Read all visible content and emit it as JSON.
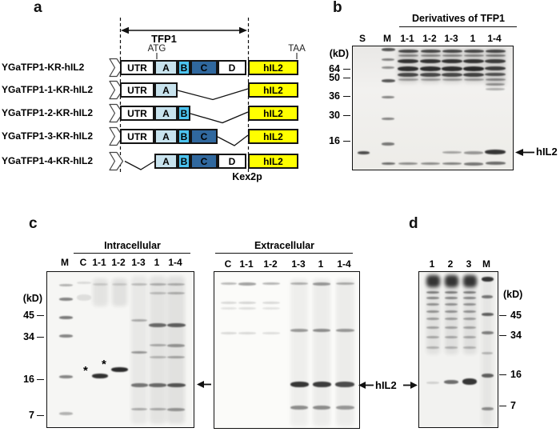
{
  "figure": {
    "panel_a": {
      "panel_label": "a",
      "tfp1_span_label": "TFP1",
      "start_codon": "ATG",
      "stop_codon": "TAA",
      "protease_label": "Kex2p",
      "segment_colors": {
        "UTR": "#ffffff",
        "A": "#c8e3ee",
        "B": "#4cc3ef",
        "C": "#30689e",
        "D": "#ffffff",
        "hIL2": "#ffff00"
      },
      "constructs": [
        {
          "label": "YGaTFP1-KR-hIL2",
          "segments": [
            "UTR",
            "A",
            "B",
            "C",
            "D",
            "hIL2"
          ]
        },
        {
          "label": "YGaTFP1-1-KR-hIL2",
          "segments": [
            "UTR",
            "A",
            "hIL2"
          ]
        },
        {
          "label": "YGaTFP1-2-KR-hIL2",
          "segments": [
            "UTR",
            "A",
            "B",
            "hIL2"
          ]
        },
        {
          "label": "YGaTFP1-3-KR-hIL2",
          "segments": [
            "UTR",
            "A",
            "B",
            "C",
            "hIL2"
          ]
        },
        {
          "label": "YGaTFP1-4-KR-hIL2",
          "segments": [
            "A",
            "B",
            "C",
            "D",
            "hIL2"
          ]
        }
      ]
    },
    "panel_b": {
      "panel_label": "b",
      "title": "Derivatives of TFP1",
      "kd_label": "(kD)",
      "lanes": [
        "S",
        "M",
        "1-1",
        "1-2",
        "1-3",
        "1",
        "1-4"
      ],
      "markers": [
        "64",
        "50",
        "36",
        "30",
        "16"
      ],
      "annotation": "hIL2",
      "bands": [
        [
          13,
          131,
          15,
          4,
          0.75
        ],
        [
          44,
          2,
          17,
          4,
          0.7
        ],
        [
          44,
          15,
          16,
          3,
          0.5
        ],
        [
          44,
          25,
          16,
          3,
          0.45
        ],
        [
          44,
          41,
          17,
          4,
          0.7
        ],
        [
          44,
          62,
          16,
          3,
          0.5
        ],
        [
          44,
          89,
          16,
          3,
          0.5
        ],
        [
          44,
          120,
          16,
          3.5,
          0.55
        ],
        [
          44,
          145,
          17,
          3,
          0.6
        ],
        [
          69,
          2,
          26,
          44,
          0.1
        ],
        [
          69,
          4,
          25,
          4,
          0.75
        ],
        [
          69,
          10,
          25,
          3,
          0.45
        ],
        [
          69,
          16,
          26,
          5,
          0.85
        ],
        [
          69,
          25,
          26,
          6,
          0.88
        ],
        [
          69,
          33,
          26,
          5,
          0.75
        ],
        [
          69,
          40,
          25,
          3,
          0.35
        ],
        [
          69,
          145,
          24,
          3,
          0.45
        ],
        [
          97,
          2,
          26,
          44,
          0.1
        ],
        [
          97,
          4,
          25,
          4,
          0.75
        ],
        [
          97,
          10,
          25,
          3,
          0.45
        ],
        [
          97,
          16,
          26,
          5,
          0.85
        ],
        [
          97,
          25,
          26,
          6,
          0.88
        ],
        [
          97,
          33,
          26,
          5,
          0.75
        ],
        [
          97,
          40,
          25,
          3,
          0.35
        ],
        [
          97,
          145,
          24,
          3,
          0.45
        ],
        [
          124,
          2,
          26,
          44,
          0.1
        ],
        [
          124,
          4,
          25,
          4,
          0.75
        ],
        [
          124,
          10,
          25,
          3,
          0.45
        ],
        [
          124,
          16,
          26,
          5,
          0.85
        ],
        [
          124,
          25,
          26,
          6,
          0.88
        ],
        [
          124,
          33,
          26,
          5,
          0.75
        ],
        [
          124,
          40,
          25,
          3,
          0.35
        ],
        [
          124,
          131,
          24,
          3,
          0.35
        ],
        [
          124,
          145,
          24,
          3,
          0.5
        ],
        [
          151,
          2,
          26,
          44,
          0.1
        ],
        [
          151,
          4,
          25,
          4,
          0.75
        ],
        [
          151,
          10,
          25,
          3,
          0.45
        ],
        [
          151,
          16,
          26,
          5,
          0.85
        ],
        [
          151,
          25,
          26,
          6,
          0.9
        ],
        [
          151,
          33,
          26,
          5,
          0.78
        ],
        [
          151,
          40,
          25,
          3,
          0.35
        ],
        [
          151,
          131,
          24,
          3.5,
          0.4
        ],
        [
          151,
          145,
          24,
          3.5,
          0.55
        ],
        [
          178,
          2,
          26,
          48,
          0.12
        ],
        [
          178,
          4,
          25,
          4,
          0.75
        ],
        [
          178,
          10,
          25,
          3,
          0.5
        ],
        [
          178,
          16,
          26,
          5,
          0.8
        ],
        [
          178,
          25,
          26,
          5,
          0.8
        ],
        [
          178,
          33,
          26,
          4,
          0.7
        ],
        [
          178,
          40,
          25,
          3,
          0.45
        ],
        [
          178,
          46,
          24,
          3,
          0.4
        ],
        [
          178,
          52,
          24,
          3,
          0.3
        ],
        [
          178,
          129,
          26,
          6,
          0.85
        ],
        [
          178,
          144,
          25,
          4,
          0.6
        ]
      ]
    },
    "panel_c": {
      "panel_label": "c",
      "kd_label": "(kD)",
      "markers": [
        "45",
        "34",
        "16",
        "7"
      ],
      "annotation": "hIL2",
      "asterisk": "*",
      "gel_intracellular": {
        "title": "Intracellular",
        "lanes": [
          "M",
          "C",
          "1-1",
          "1-2",
          "1-3",
          "1",
          "1-4"
        ],
        "bands": [
          [
            23,
            15,
            17,
            3,
            0.3
          ],
          [
            23,
            32,
            17,
            4,
            0.5
          ],
          [
            23,
            55,
            17,
            4,
            0.55
          ],
          [
            23,
            78,
            17,
            4,
            0.5
          ],
          [
            23,
            129,
            17,
            4,
            0.5
          ],
          [
            23,
            175,
            17,
            4,
            0.3
          ],
          [
            46,
            12,
            18,
            3,
            0.12
          ],
          [
            46,
            28,
            18,
            8,
            0.1
          ],
          [
            66,
            8,
            19,
            35,
            0.08
          ],
          [
            66,
            14,
            19,
            3,
            0.14
          ],
          [
            66,
            127,
            20,
            6,
            0.88
          ],
          [
            90,
            8,
            19,
            35,
            0.09
          ],
          [
            90,
            14,
            19,
            3,
            0.14
          ],
          [
            90,
            119,
            21,
            6,
            0.9
          ],
          [
            115,
            5,
            20,
            185,
            0.06
          ],
          [
            115,
            14,
            20,
            3,
            0.22
          ],
          [
            115,
            59,
            20,
            3,
            0.3
          ],
          [
            115,
            99,
            20,
            3,
            0.4
          ],
          [
            115,
            139,
            21,
            4.5,
            0.55
          ],
          [
            115,
            170,
            20,
            3,
            0.3
          ],
          [
            138,
            5,
            21,
            185,
            0.08
          ],
          [
            138,
            14,
            21,
            3,
            0.28
          ],
          [
            138,
            25,
            21,
            3,
            0.22
          ],
          [
            138,
            64,
            22,
            5,
            0.6
          ],
          [
            138,
            90,
            21,
            3,
            0.3
          ],
          [
            138,
            105,
            21,
            3,
            0.25
          ],
          [
            138,
            139,
            22,
            4.5,
            0.6
          ],
          [
            138,
            170,
            21,
            3,
            0.3
          ],
          [
            161,
            5,
            22,
            185,
            0.09
          ],
          [
            161,
            14,
            22,
            3,
            0.28
          ],
          [
            161,
            25,
            22,
            3,
            0.28
          ],
          [
            161,
            64,
            23,
            5,
            0.65
          ],
          [
            161,
            90,
            22,
            4,
            0.4
          ],
          [
            161,
            105,
            22,
            3,
            0.33
          ],
          [
            161,
            139,
            23,
            5,
            0.7
          ],
          [
            161,
            170,
            22,
            3.5,
            0.4
          ]
        ]
      },
      "gel_extracellular": {
        "title": "Extracellular",
        "lanes": [
          "C",
          "1-1",
          "1-2",
          "1-3",
          "1",
          "1-4"
        ],
        "bands": [
          [
            18,
            13,
            20,
            3,
            0.28
          ],
          [
            41,
            13,
            22,
            3.5,
            0.38
          ],
          [
            71,
            13,
            22,
            3,
            0.3
          ],
          [
            106,
            13,
            22,
            3,
            0.3
          ],
          [
            134,
            13,
            22,
            3.5,
            0.4
          ],
          [
            163,
            13,
            23,
            3,
            0.32
          ],
          [
            18,
            37,
            20,
            3,
            0.14
          ],
          [
            41,
            37,
            22,
            3,
            0.16
          ],
          [
            71,
            37,
            22,
            3,
            0.14
          ],
          [
            18,
            44,
            20,
            3,
            0.1
          ],
          [
            41,
            44,
            22,
            3,
            0.12
          ],
          [
            71,
            44,
            22,
            3,
            0.1
          ],
          [
            18,
            75,
            20,
            2.5,
            0.14
          ],
          [
            41,
            75,
            22,
            2.5,
            0.14
          ],
          [
            71,
            75,
            22,
            2.5,
            0.12
          ],
          [
            106,
            8,
            22,
            185,
            0.05
          ],
          [
            134,
            8,
            22,
            185,
            0.06
          ],
          [
            163,
            8,
            23,
            185,
            0.06
          ],
          [
            106,
            71,
            22,
            4,
            0.4
          ],
          [
            134,
            71,
            22,
            4,
            0.45
          ],
          [
            163,
            71,
            23,
            4,
            0.4
          ],
          [
            106,
            137,
            23,
            7,
            0.85
          ],
          [
            134,
            137,
            23,
            7,
            0.82
          ],
          [
            163,
            137,
            24,
            7,
            0.75
          ],
          [
            106,
            167,
            22,
            5,
            0.45
          ],
          [
            134,
            167,
            22,
            5,
            0.45
          ],
          [
            163,
            167,
            23,
            5,
            0.4
          ]
        ]
      }
    },
    "panel_d": {
      "panel_label": "d",
      "kd_label": "(kD)",
      "lanes": [
        "1",
        "2",
        "3",
        "M"
      ],
      "markers": [
        "45",
        "34",
        "16",
        "7"
      ],
      "bands": [
        [
          17,
          3,
          17,
          100,
          0.07
        ],
        [
          40,
          3,
          17,
          100,
          0.08
        ],
        [
          63,
          3,
          17,
          100,
          0.08
        ],
        [
          17,
          4,
          17,
          15,
          0.85
        ],
        [
          40,
          4,
          17,
          15,
          0.85
        ],
        [
          63,
          4,
          17,
          15,
          0.85
        ],
        [
          17,
          24,
          16,
          3,
          0.5
        ],
        [
          17,
          31,
          16,
          3,
          0.45
        ],
        [
          17,
          39,
          16,
          3,
          0.4
        ],
        [
          17,
          48,
          16,
          3,
          0.4
        ],
        [
          17,
          57,
          16,
          3,
          0.35
        ],
        [
          17,
          68,
          16,
          3,
          0.33
        ],
        [
          17,
          80,
          16,
          3,
          0.3
        ],
        [
          17,
          93,
          16,
          2.5,
          0.25
        ],
        [
          40,
          24,
          16,
          3,
          0.5
        ],
        [
          40,
          31,
          16,
          3,
          0.45
        ],
        [
          40,
          39,
          16,
          3,
          0.4
        ],
        [
          40,
          48,
          16,
          3,
          0.4
        ],
        [
          40,
          57,
          16,
          3,
          0.35
        ],
        [
          40,
          68,
          16,
          3,
          0.33
        ],
        [
          40,
          80,
          16,
          3,
          0.3
        ],
        [
          40,
          93,
          16,
          2.5,
          0.25
        ],
        [
          63,
          24,
          16,
          3,
          0.5
        ],
        [
          63,
          31,
          16,
          3,
          0.45
        ],
        [
          63,
          39,
          16,
          3,
          0.4
        ],
        [
          63,
          48,
          16,
          3,
          0.4
        ],
        [
          63,
          57,
          16,
          3,
          0.35
        ],
        [
          63,
          68,
          16,
          3,
          0.33
        ],
        [
          63,
          80,
          16,
          3,
          0.3
        ],
        [
          63,
          93,
          16,
          2.5,
          0.25
        ],
        [
          17,
          137,
          16,
          3,
          0.15
        ],
        [
          40,
          135,
          18,
          5,
          0.6
        ],
        [
          63,
          133,
          18,
          8,
          0.85
        ],
        [
          85,
          3,
          14,
          190,
          0.05
        ],
        [
          85,
          6,
          15,
          6,
          0.85
        ],
        [
          85,
          29,
          14,
          4,
          0.55
        ],
        [
          85,
          51,
          15,
          4,
          0.65
        ],
        [
          85,
          74,
          15,
          4,
          0.5
        ],
        [
          85,
          100,
          14,
          3,
          0.25
        ],
        [
          85,
          127,
          15,
          5,
          0.65
        ],
        [
          85,
          169,
          15,
          4,
          0.45
        ]
      ]
    }
  }
}
